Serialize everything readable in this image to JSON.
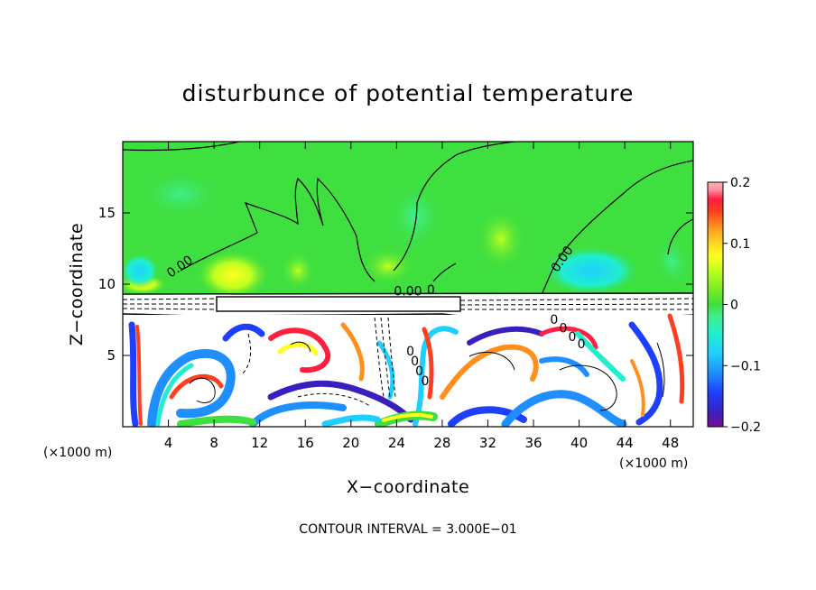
{
  "chart_data": {
    "type": "heatmap",
    "title": "disturbunce of potential temperature",
    "xlabel": "X−coordinate",
    "ylabel": "Z−coordinate",
    "x_unit": "(×1000 m)",
    "z_unit": "(×1000 m)",
    "xlim": [
      0,
      50
    ],
    "ylim": [
      0,
      20
    ],
    "x_ticks": [
      4,
      8,
      12,
      16,
      20,
      24,
      28,
      32,
      36,
      40,
      44,
      48
    ],
    "y_ticks": [
      5,
      10,
      15
    ],
    "colorbar": {
      "range": [
        -0.2,
        0.2
      ],
      "tick_values": [
        0.2,
        0.1,
        0,
        -0.1,
        -0.2
      ],
      "tick_labels": [
        "0.2",
        "0.1",
        "0",
        "−0.1",
        "−0.2"
      ],
      "colors": [
        "#7a0f8f",
        "#3a1fbf",
        "#1f3fff",
        "#1f8fff",
        "#1fcfff",
        "#1fefcf",
        "#3fef8f",
        "#3fdf3f",
        "#7fef1f",
        "#bfff1f",
        "#ffff1f",
        "#ffcf1f",
        "#ff8f1f",
        "#ff3f1f",
        "#ff1f3f",
        "#ff8fa0",
        "#ffb0b0"
      ]
    },
    "contour_interval": "CONTOUR INTERVAL = 3.000E−01",
    "contour_labels": [
      {
        "text": "0.00",
        "x": 5.2,
        "z": 11.0
      },
      {
        "text": "0.00",
        "x": 38.8,
        "z": 11.6
      },
      {
        "text": "0.00",
        "x": 25.0,
        "z": 9.2
      },
      {
        "text": "0",
        "x": 27.0,
        "z": 9.3
      },
      {
        "text": "0",
        "x": 37.8,
        "z": 7.2
      },
      {
        "text": "0",
        "x": 38.6,
        "z": 6.6
      },
      {
        "text": "0",
        "x": 39.4,
        "z": 6.0
      },
      {
        "text": "0",
        "x": 40.2,
        "z": 5.5
      },
      {
        "text": "0",
        "x": 25.2,
        "z": 5.0
      },
      {
        "text": "0",
        "x": 25.6,
        "z": 4.3
      },
      {
        "text": "0",
        "x": 26.0,
        "z": 3.6
      },
      {
        "text": "0",
        "x": 26.5,
        "z": 2.9
      }
    ]
  }
}
